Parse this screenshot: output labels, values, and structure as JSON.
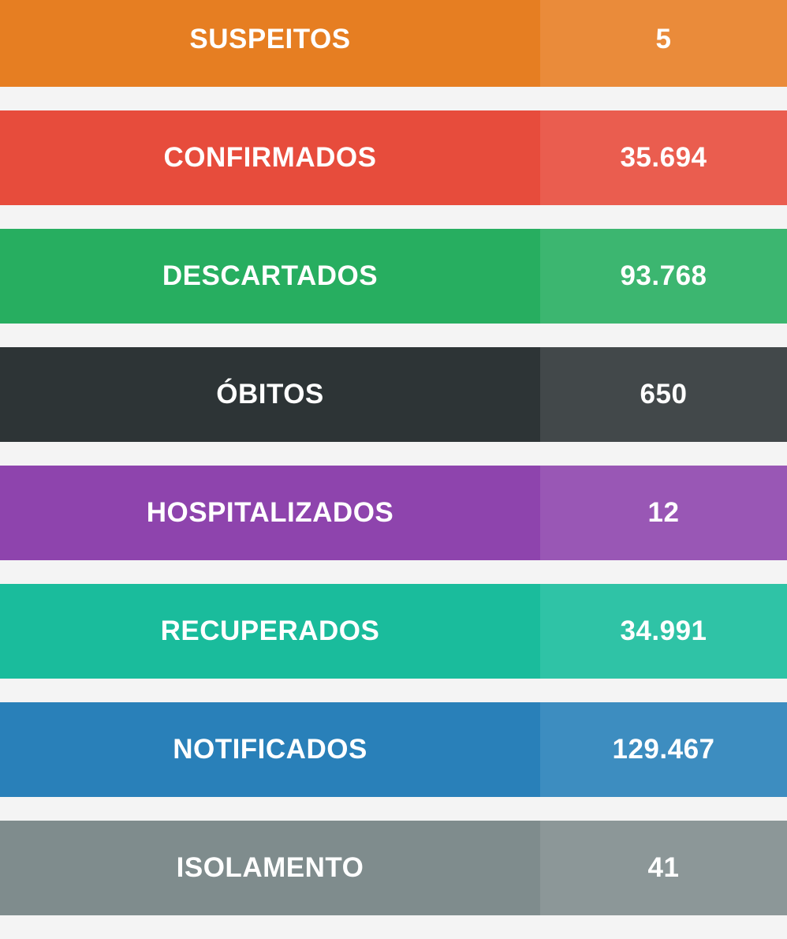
{
  "stats": [
    {
      "label": "SUSPEITOS",
      "value": "5",
      "color": "#e67e22",
      "value_color": "#ea8b3a"
    },
    {
      "label": "CONFIRMADOS",
      "value": "35.694",
      "color": "#e74c3c",
      "value_color": "#ea5d4f"
    },
    {
      "label": "DESCARTADOS",
      "value": "93.768",
      "color": "#27ae60",
      "value_color": "#3cb670"
    },
    {
      "label": "ÓBITOS",
      "value": "650",
      "color": "#2d3436",
      "value_color": "#42484a"
    },
    {
      "label": "HOSPITALIZADOS",
      "value": "12",
      "color": "#8e44ad",
      "value_color": "#9957b5"
    },
    {
      "label": "RECUPERADOS",
      "value": "34.991",
      "color": "#1abc9c",
      "value_color": "#2fc3a6"
    },
    {
      "label": "NOTIFICADOS",
      "value": "129.467",
      "color": "#2980b9",
      "value_color": "#3d8dc0"
    },
    {
      "label": "ISOLAMENTO",
      "value": "41",
      "color": "#7f8c8d",
      "value_color": "#8c9798"
    }
  ]
}
